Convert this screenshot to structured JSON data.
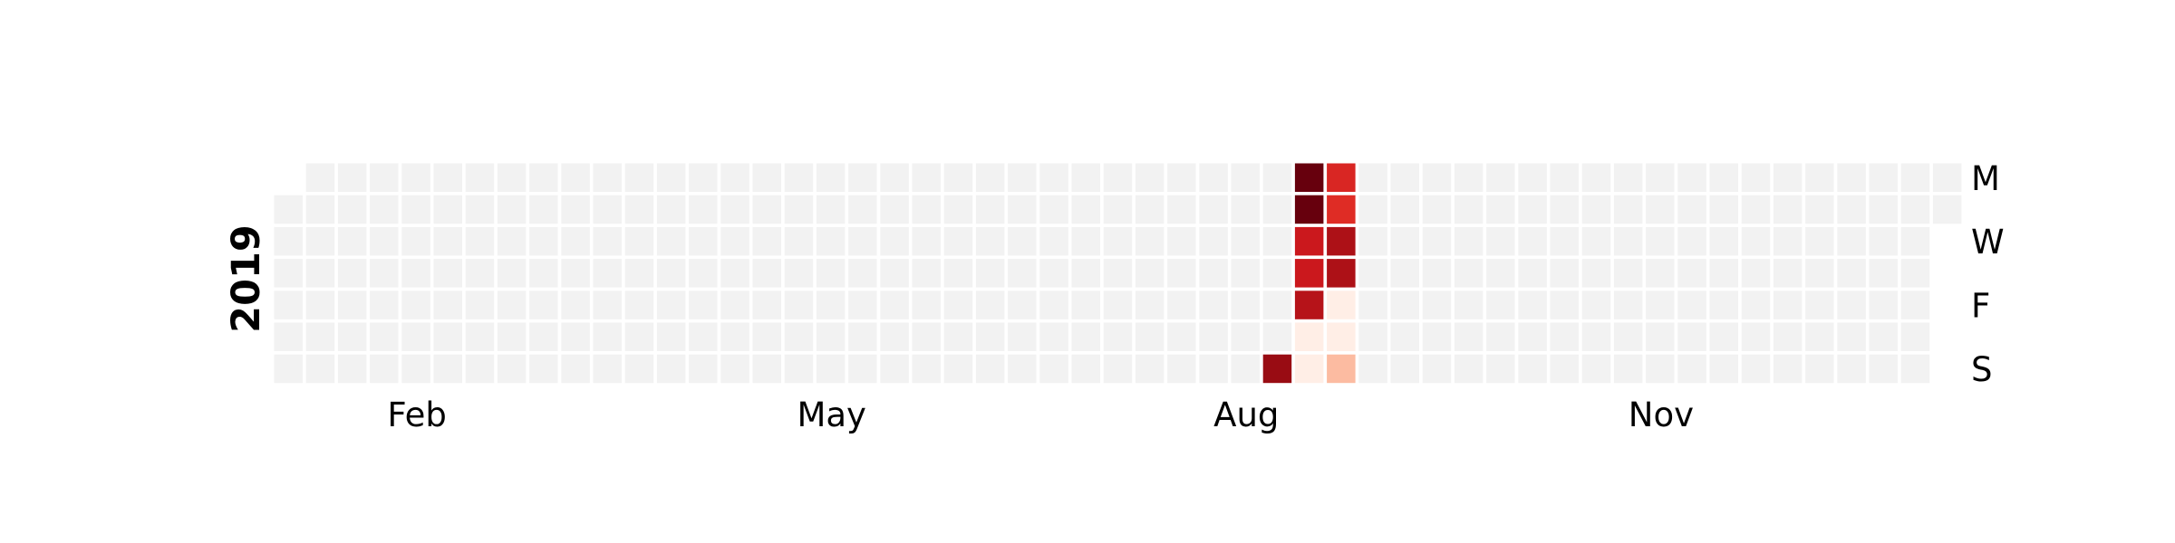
{
  "chart_data": {
    "type": "heatmap",
    "title": "",
    "year": "2019",
    "start_date": "2019-01-01",
    "end_date": "2019-12-31",
    "month_ticks": [
      {
        "label": "Feb",
        "date": "2019-02-01"
      },
      {
        "label": "May",
        "date": "2019-05-01"
      },
      {
        "label": "Aug",
        "date": "2019-08-01"
      },
      {
        "label": "Nov",
        "date": "2019-11-01"
      }
    ],
    "day_labels": [
      {
        "label": "M",
        "weekday": 0
      },
      {
        "label": "W",
        "weekday": 2
      },
      {
        "label": "F",
        "weekday": 4
      },
      {
        "label": "S",
        "weekday": 6
      }
    ],
    "colormap": "Reds",
    "scale": [
      0,
      1
    ],
    "empty_color": "#f2f2f2",
    "values": [
      {
        "date": "2019-08-11",
        "value": 0.9
      },
      {
        "date": "2019-08-12",
        "value": 1.0
      },
      {
        "date": "2019-08-13",
        "value": 1.0
      },
      {
        "date": "2019-08-14",
        "value": 0.75
      },
      {
        "date": "2019-08-15",
        "value": 0.75
      },
      {
        "date": "2019-08-16",
        "value": 0.82
      },
      {
        "date": "2019-08-17",
        "value": 0.04
      },
      {
        "date": "2019-08-18",
        "value": 0.04
      },
      {
        "date": "2019-08-19",
        "value": 0.7
      },
      {
        "date": "2019-08-20",
        "value": 0.68
      },
      {
        "date": "2019-08-21",
        "value": 0.85
      },
      {
        "date": "2019-08-22",
        "value": 0.85
      },
      {
        "date": "2019-08-23",
        "value": 0.04
      },
      {
        "date": "2019-08-24",
        "value": 0.04
      },
      {
        "date": "2019-08-25",
        "value": 0.25
      }
    ]
  }
}
